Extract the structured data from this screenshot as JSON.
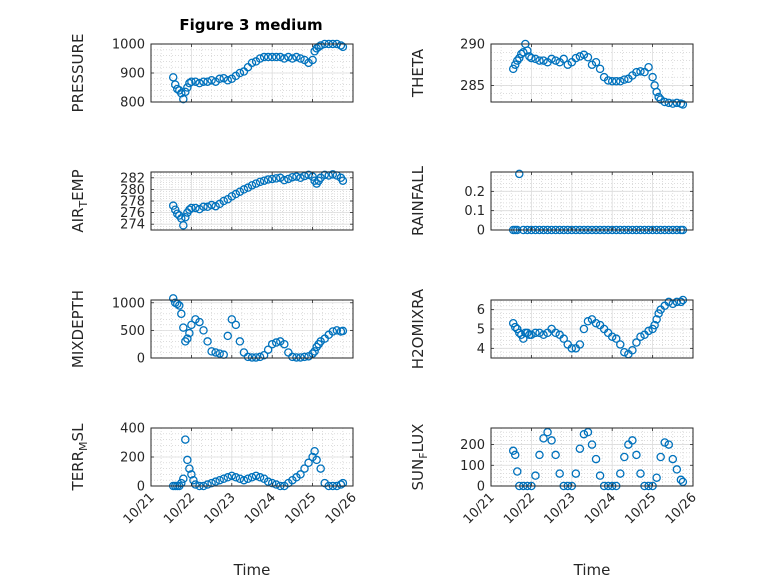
{
  "figure": {
    "title": "Figure 3 medium",
    "marker_color": "#0072BD"
  },
  "chart_data": [
    {
      "type": "scatter",
      "ylabel": "PRESSURE",
      "ylabel_sub": null,
      "ylim": [
        800,
        1000
      ],
      "yticks": [
        800,
        900,
        1000
      ],
      "xlim": [
        0,
        5
      ],
      "xticks": [
        0,
        1,
        2,
        3,
        4,
        5
      ],
      "xticklabels": [
        "10/21",
        "10/22",
        "10/23",
        "10/24",
        "10/25",
        "10/26"
      ],
      "xlabel": "",
      "grid": true,
      "x": [
        0.55,
        0.6,
        0.65,
        0.7,
        0.75,
        0.8,
        0.85,
        0.9,
        0.95,
        1.0,
        1.1,
        1.2,
        1.3,
        1.4,
        1.5,
        1.6,
        1.7,
        1.8,
        1.9,
        2.0,
        2.1,
        2.2,
        2.3,
        2.4,
        2.5,
        2.6,
        2.7,
        2.8,
        2.9,
        3.0,
        3.1,
        3.2,
        3.3,
        3.4,
        3.5,
        3.6,
        3.7,
        3.8,
        3.9,
        4.0,
        4.05,
        4.1,
        4.15,
        4.2,
        4.3,
        4.4,
        4.5,
        4.6,
        4.7,
        4.75
      ],
      "y": [
        885,
        860,
        845,
        840,
        830,
        810,
        835,
        850,
        865,
        870,
        870,
        865,
        870,
        870,
        875,
        870,
        880,
        882,
        875,
        880,
        890,
        900,
        905,
        920,
        935,
        940,
        950,
        955,
        955,
        955,
        955,
        955,
        950,
        955,
        950,
        955,
        950,
        945,
        935,
        945,
        975,
        985,
        990,
        995,
        1000,
        1000,
        1000,
        1000,
        995,
        990
      ]
    },
    {
      "type": "scatter",
      "ylabel": "THETA",
      "ylabel_sub": null,
      "ylim": [
        283,
        290
      ],
      "yticks": [
        285,
        290
      ],
      "xlim": [
        0,
        5
      ],
      "xticks": [
        0,
        1,
        2,
        3,
        4,
        5
      ],
      "xticklabels": [
        "10/21",
        "10/22",
        "10/23",
        "10/24",
        "10/25",
        "10/26"
      ],
      "xlabel": "Time",
      "grid": true,
      "x": [
        0.55,
        0.6,
        0.65,
        0.7,
        0.75,
        0.8,
        0.85,
        0.9,
        0.95,
        1.0,
        1.1,
        1.2,
        1.3,
        1.4,
        1.5,
        1.6,
        1.7,
        1.8,
        1.9,
        2.0,
        2.1,
        2.2,
        2.3,
        2.4,
        2.5,
        2.6,
        2.7,
        2.8,
        2.9,
        3.0,
        3.1,
        3.2,
        3.3,
        3.4,
        3.5,
        3.6,
        3.7,
        3.8,
        3.9,
        4.0,
        4.05,
        4.1,
        4.15,
        4.2,
        4.3,
        4.4,
        4.5,
        4.6,
        4.7,
        4.75
      ],
      "y": [
        287.0,
        287.5,
        288.0,
        288.3,
        288.8,
        289.0,
        290.0,
        289.2,
        288.5,
        288.3,
        288.2,
        288.0,
        288.0,
        287.8,
        288.2,
        288.0,
        287.8,
        288.2,
        287.5,
        287.8,
        288.3,
        288.5,
        288.7,
        288.4,
        287.5,
        287.8,
        287.0,
        286.0,
        285.6,
        285.5,
        285.5,
        285.5,
        285.7,
        285.8,
        286.2,
        286.6,
        286.7,
        286.6,
        287.2,
        286.0,
        285.0,
        284.2,
        283.6,
        283.3,
        283.0,
        282.9,
        282.8,
        282.9,
        282.8,
        282.7
      ]
    },
    {
      "type": "scatter",
      "ylabel": "AIR",
      "ylabel_sub": "T",
      "ylabel_rest": "EMP",
      "ylim": [
        273,
        283
      ],
      "yticks": [
        274,
        276,
        278,
        280,
        282
      ],
      "xlim": [
        0,
        5
      ],
      "xticks": [
        0,
        1,
        2,
        3,
        4,
        5
      ],
      "xticklabels": [
        "10/21",
        "10/22",
        "10/23",
        "10/24",
        "10/25",
        "10/26"
      ],
      "xlabel": "",
      "grid": true,
      "x": [
        0.55,
        0.6,
        0.65,
        0.7,
        0.75,
        0.8,
        0.85,
        0.9,
        0.95,
        1.0,
        1.1,
        1.2,
        1.3,
        1.4,
        1.5,
        1.6,
        1.7,
        1.8,
        1.9,
        2.0,
        2.1,
        2.2,
        2.3,
        2.4,
        2.5,
        2.6,
        2.7,
        2.8,
        2.9,
        3.0,
        3.1,
        3.2,
        3.3,
        3.4,
        3.5,
        3.6,
        3.7,
        3.8,
        3.9,
        4.0,
        4.05,
        4.1,
        4.15,
        4.2,
        4.3,
        4.4,
        4.5,
        4.6,
        4.7,
        4.75
      ],
      "y": [
        277.2,
        276.5,
        275.8,
        275.5,
        275.0,
        273.8,
        275.2,
        276.0,
        276.5,
        276.8,
        276.8,
        276.6,
        277.0,
        277.0,
        277.3,
        277.1,
        277.5,
        278.0,
        278.3,
        278.8,
        279.2,
        279.6,
        280.0,
        280.3,
        280.7,
        281.0,
        281.3,
        281.5,
        281.7,
        281.8,
        281.9,
        282.0,
        281.6,
        281.8,
        282.1,
        282.2,
        282.0,
        282.3,
        282.5,
        282.2,
        281.5,
        281.0,
        281.5,
        282.0,
        282.5,
        282.4,
        282.6,
        282.4,
        282.0,
        281.5
      ]
    },
    {
      "type": "scatter",
      "ylabel": "RAINFALL",
      "ylabel_sub": null,
      "ylim": [
        0,
        0.3
      ],
      "yticks": [
        0,
        0.1,
        0.2
      ],
      "xlim": [
        0,
        5
      ],
      "xticks": [
        0,
        1,
        2,
        3,
        4,
        5
      ],
      "xticklabels": [
        "10/21",
        "10/22",
        "10/23",
        "10/24",
        "10/25",
        "10/26"
      ],
      "xlabel": "Time",
      "grid": true,
      "x": [
        0.55,
        0.6,
        0.65,
        0.7,
        0.8,
        0.9,
        1.0,
        1.1,
        1.2,
        1.3,
        1.4,
        1.5,
        1.6,
        1.7,
        1.8,
        1.9,
        2.0,
        2.1,
        2.2,
        2.3,
        2.4,
        2.5,
        2.6,
        2.7,
        2.8,
        2.9,
        3.0,
        3.1,
        3.2,
        3.3,
        3.4,
        3.5,
        3.6,
        3.7,
        3.8,
        3.9,
        4.0,
        4.1,
        4.2,
        4.3,
        4.4,
        4.5,
        4.6,
        4.7,
        4.75
      ],
      "y": [
        0,
        0,
        0,
        0.29,
        0,
        0,
        0,
        0,
        0,
        0,
        0,
        0,
        0,
        0,
        0,
        0,
        0,
        0,
        0,
        0,
        0,
        0,
        0,
        0,
        0,
        0,
        0,
        0,
        0,
        0,
        0,
        0,
        0,
        0,
        0,
        0,
        0,
        0,
        0,
        0,
        0,
        0,
        0,
        0,
        0
      ]
    },
    {
      "type": "scatter",
      "ylabel": "MIXDEPTH",
      "ylabel_sub": null,
      "ylim": [
        0,
        1050
      ],
      "yticks": [
        0,
        500,
        1000
      ],
      "xlim": [
        0,
        5
      ],
      "xticks": [
        0,
        1,
        2,
        3,
        4,
        5
      ],
      "xticklabels": [
        "10/21",
        "10/22",
        "10/23",
        "10/24",
        "10/25",
        "10/26"
      ],
      "xlabel": "",
      "grid": true,
      "x": [
        0.55,
        0.6,
        0.65,
        0.7,
        0.75,
        0.8,
        0.85,
        0.9,
        0.95,
        1.0,
        1.1,
        1.2,
        1.3,
        1.4,
        1.5,
        1.6,
        1.7,
        1.8,
        1.9,
        2.0,
        2.1,
        2.2,
        2.3,
        2.4,
        2.5,
        2.6,
        2.7,
        2.8,
        2.9,
        3.0,
        3.1,
        3.2,
        3.3,
        3.4,
        3.5,
        3.6,
        3.7,
        3.8,
        3.9,
        4.0,
        4.05,
        4.1,
        4.15,
        4.2,
        4.3,
        4.4,
        4.5,
        4.6,
        4.7,
        4.75
      ],
      "y": [
        1080,
        1000,
        980,
        950,
        800,
        550,
        300,
        350,
        450,
        600,
        700,
        650,
        500,
        300,
        120,
        100,
        80,
        60,
        400,
        700,
        600,
        300,
        100,
        20,
        10,
        10,
        20,
        50,
        150,
        250,
        280,
        300,
        250,
        100,
        20,
        10,
        10,
        20,
        30,
        80,
        120,
        200,
        250,
        300,
        350,
        420,
        480,
        500,
        480,
        490
      ]
    },
    {
      "type": "scatter",
      "ylabel": "H2OMIXRA",
      "ylabel_sub": null,
      "ylim": [
        3.5,
        6.5
      ],
      "yticks": [
        4,
        5,
        6
      ],
      "xlim": [
        0,
        5
      ],
      "xticks": [
        0,
        1,
        2,
        3,
        4,
        5
      ],
      "xticklabels": [
        "10/21",
        "10/22",
        "10/23",
        "10/24",
        "10/25",
        "10/26"
      ],
      "xlabel": "Time",
      "grid": true,
      "x": [
        0.55,
        0.6,
        0.65,
        0.7,
        0.75,
        0.8,
        0.85,
        0.9,
        0.95,
        1.0,
        1.1,
        1.2,
        1.3,
        1.4,
        1.5,
        1.6,
        1.7,
        1.8,
        1.9,
        2.0,
        2.1,
        2.2,
        2.3,
        2.4,
        2.5,
        2.6,
        2.7,
        2.8,
        2.9,
        3.0,
        3.1,
        3.2,
        3.3,
        3.4,
        3.5,
        3.6,
        3.7,
        3.8,
        3.9,
        4.0,
        4.05,
        4.1,
        4.15,
        4.2,
        4.3,
        4.4,
        4.5,
        4.6,
        4.7,
        4.75
      ],
      "y": [
        5.3,
        5.1,
        5.0,
        4.8,
        4.7,
        4.5,
        4.8,
        4.8,
        4.7,
        4.7,
        4.8,
        4.8,
        4.7,
        4.8,
        5.0,
        4.8,
        4.7,
        4.5,
        4.2,
        4.0,
        4.0,
        4.2,
        5.0,
        5.4,
        5.5,
        5.3,
        5.2,
        5.0,
        4.8,
        4.6,
        4.5,
        4.2,
        3.8,
        3.7,
        3.9,
        4.3,
        4.6,
        4.7,
        4.9,
        5.0,
        5.2,
        5.5,
        5.8,
        6.0,
        6.2,
        6.4,
        6.3,
        6.4,
        6.4,
        6.5
      ]
    },
    {
      "type": "scatter",
      "ylabel": "TERR",
      "ylabel_sub": "M",
      "ylabel_rest": "SL",
      "ylim": [
        0,
        400
      ],
      "yticks": [
        0,
        200,
        400
      ],
      "xlim": [
        0,
        5
      ],
      "xticks": [
        0,
        1,
        2,
        3,
        4,
        5
      ],
      "xticklabels": [
        "10/21",
        "10/22",
        "10/23",
        "10/24",
        "10/25",
        "10/26"
      ],
      "xlabel": "Time",
      "grid": true,
      "x": [
        0.55,
        0.6,
        0.65,
        0.7,
        0.75,
        0.8,
        0.85,
        0.9,
        0.95,
        1.0,
        1.05,
        1.1,
        1.2,
        1.3,
        1.4,
        1.5,
        1.6,
        1.7,
        1.8,
        1.9,
        2.0,
        2.1,
        2.2,
        2.3,
        2.4,
        2.5,
        2.6,
        2.7,
        2.8,
        2.9,
        3.0,
        3.1,
        3.2,
        3.3,
        3.4,
        3.5,
        3.6,
        3.7,
        3.8,
        3.9,
        4.0,
        4.05,
        4.1,
        4.2,
        4.3,
        4.4,
        4.5,
        4.6,
        4.7,
        4.75
      ],
      "y": [
        0,
        0,
        0,
        0,
        20,
        50,
        320,
        180,
        120,
        80,
        40,
        10,
        0,
        0,
        10,
        20,
        30,
        40,
        50,
        60,
        70,
        60,
        50,
        40,
        50,
        60,
        70,
        60,
        50,
        30,
        20,
        10,
        0,
        0,
        20,
        40,
        60,
        80,
        120,
        160,
        200,
        240,
        180,
        120,
        20,
        0,
        0,
        0,
        10,
        20
      ]
    },
    {
      "type": "scatter",
      "ylabel": "SUN",
      "ylabel_sub": "F",
      "ylabel_rest": "LUX",
      "ylim": [
        0,
        280
      ],
      "yticks": [
        0,
        100,
        200
      ],
      "xlim": [
        0,
        5
      ],
      "xticks": [
        0,
        1,
        2,
        3,
        4,
        5
      ],
      "xticklabels": [
        "10/21",
        "10/22",
        "10/23",
        "10/24",
        "10/25",
        "10/26"
      ],
      "xlabel": "Time",
      "grid": true,
      "x": [
        0.55,
        0.6,
        0.65,
        0.7,
        0.8,
        0.9,
        1.0,
        1.1,
        1.2,
        1.3,
        1.4,
        1.5,
        1.6,
        1.7,
        1.8,
        1.9,
        2.0,
        2.1,
        2.2,
        2.3,
        2.4,
        2.5,
        2.6,
        2.7,
        2.8,
        2.9,
        3.0,
        3.1,
        3.2,
        3.3,
        3.4,
        3.5,
        3.6,
        3.7,
        3.8,
        3.9,
        4.0,
        4.1,
        4.2,
        4.3,
        4.4,
        4.5,
        4.6,
        4.7,
        4.75
      ],
      "y": [
        170,
        150,
        70,
        0,
        0,
        0,
        0,
        50,
        150,
        230,
        260,
        220,
        150,
        60,
        0,
        0,
        0,
        60,
        180,
        250,
        260,
        200,
        130,
        50,
        0,
        0,
        0,
        0,
        60,
        140,
        200,
        220,
        150,
        60,
        0,
        0,
        0,
        40,
        140,
        210,
        200,
        130,
        80,
        30,
        20
      ]
    }
  ]
}
